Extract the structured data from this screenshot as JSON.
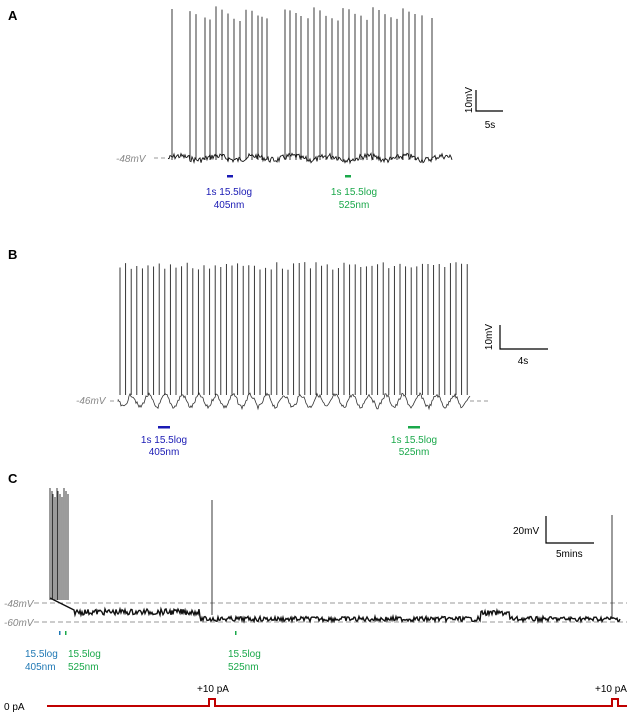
{
  "panels": {
    "a": {
      "letter": "A",
      "baseline": "-48mV",
      "scale_v": "10mV",
      "scale_t": "5s",
      "stim": [
        {
          "line1": "1s 15.5log",
          "line2": "405nm",
          "color": "#1a1ab4"
        },
        {
          "line1": "1s 15.5log",
          "line2": "525nm",
          "color": "#1aa84a"
        }
      ]
    },
    "b": {
      "letter": "B",
      "baseline": "-46mV",
      "scale_v": "10mV",
      "scale_t": "4s",
      "stim": [
        {
          "line1": "1s 15.5log",
          "line2": "405nm",
          "color": "#1a1ab4"
        },
        {
          "line1": "1s 15.5log",
          "line2": "525nm",
          "color": "#1aa84a"
        }
      ]
    },
    "c": {
      "letter": "C",
      "baseline_upper": "-48mV",
      "baseline_lower": "-60mV",
      "scale_v": "20mV",
      "scale_t": "5mins",
      "stim": [
        {
          "line1": "15.5log",
          "line2": "405nm",
          "color": "#1f78b4"
        },
        {
          "line1": "15.5log",
          "line2": "525nm",
          "color": "#1aa84a"
        },
        {
          "line1": "15.5log",
          "line2": "525nm",
          "color": "#1aa84a"
        }
      ],
      "current": {
        "zero_label": "0 pA",
        "pulse_label_1": "+10 pA",
        "pulse_label_2": "+10 pA",
        "color": "#c00000"
      }
    }
  },
  "colors": {
    "trace": "#111111",
    "dashed": "#999999"
  }
}
